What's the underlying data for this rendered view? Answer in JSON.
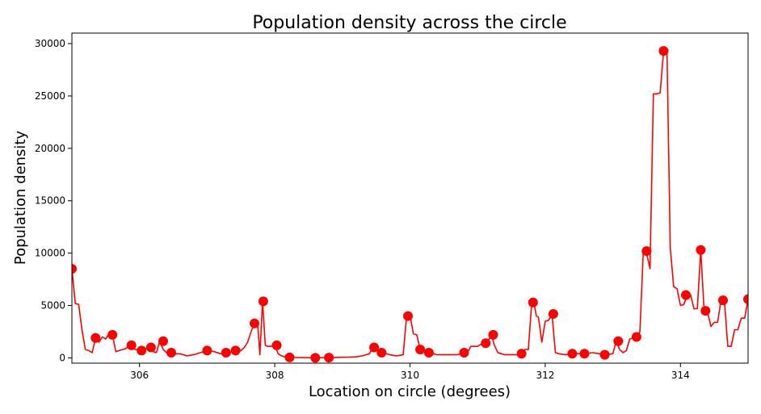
{
  "chart_data": {
    "type": "line",
    "title": "Population density across the circle",
    "xlabel": "Location on circle (degrees)",
    "ylabel": "Population density",
    "xlim": [
      305.0,
      315.0
    ],
    "ylim": [
      -500,
      31000
    ],
    "xticks": [
      306,
      308,
      310,
      312,
      314
    ],
    "yticks": [
      0,
      5000,
      10000,
      15000,
      20000,
      25000,
      30000
    ],
    "grid": false,
    "legend": false,
    "colors": {
      "line": "#ff0000",
      "marker": "#ff0000"
    },
    "series": [
      {
        "style": "line",
        "x": [
          305.0,
          305.05,
          305.1,
          305.15,
          305.2,
          305.25,
          305.3,
          305.35,
          305.4,
          305.45,
          305.5,
          305.55,
          305.6,
          305.65,
          305.7,
          305.75,
          305.8,
          305.85,
          305.9,
          305.95,
          306.0,
          306.05,
          306.1,
          306.15,
          306.2,
          306.25,
          306.3,
          306.35,
          306.4,
          306.45,
          306.5,
          306.6,
          306.7,
          306.8,
          306.9,
          307.0,
          307.1,
          307.2,
          307.3,
          307.4,
          307.5,
          307.55,
          307.6,
          307.65,
          307.7,
          307.75,
          307.78,
          307.82,
          307.86,
          307.9,
          307.95,
          308.0,
          308.05,
          308.1,
          308.15,
          308.2,
          308.3,
          308.4,
          308.5,
          308.6,
          308.7,
          308.8,
          308.9,
          309.0,
          309.1,
          309.2,
          309.3,
          309.4,
          309.45,
          309.5,
          309.55,
          309.6,
          309.7,
          309.8,
          309.9,
          309.95,
          310.0,
          310.05,
          310.1,
          310.15,
          310.2,
          310.25,
          310.3,
          310.4,
          310.5,
          310.6,
          310.7,
          310.8,
          310.85,
          310.9,
          311.0,
          311.05,
          311.1,
          311.15,
          311.2,
          311.25,
          311.3,
          311.35,
          311.4,
          311.5,
          311.6,
          311.65,
          311.7,
          311.75,
          311.8,
          311.83,
          311.87,
          311.9,
          311.95,
          312.0,
          312.05,
          312.1,
          312.15,
          312.2,
          312.3,
          312.4,
          312.5,
          312.6,
          312.7,
          312.8,
          312.9,
          313.0,
          313.05,
          313.1,
          313.15,
          313.2,
          313.25,
          313.3,
          313.35,
          313.4,
          313.45,
          313.5,
          313.55,
          313.6,
          313.65,
          313.7,
          313.75,
          313.8,
          313.85,
          313.9,
          313.95,
          314.0,
          314.05,
          314.1,
          314.15,
          314.2,
          314.25,
          314.3,
          314.35,
          314.4,
          314.45,
          314.5,
          314.55,
          314.6,
          314.65,
          314.7,
          314.75,
          314.8,
          314.85,
          314.9,
          314.95,
          315.0
        ],
        "y": [
          8500,
          5200,
          5100,
          2600,
          800,
          700,
          500,
          1900,
          1500,
          2000,
          1800,
          2300,
          2200,
          600,
          700,
          800,
          900,
          1200,
          900,
          800,
          700,
          800,
          900,
          1000,
          600,
          500,
          1600,
          800,
          500,
          500,
          400,
          400,
          200,
          300,
          500,
          700,
          600,
          400,
          500,
          600,
          700,
          1000,
          1500,
          2500,
          3300,
          3000,
          300,
          5400,
          1200,
          1100,
          1100,
          1200,
          400,
          200,
          100,
          50,
          40,
          30,
          20,
          10,
          20,
          30,
          50,
          60,
          80,
          100,
          200,
          400,
          1000,
          900,
          500,
          500,
          300,
          200,
          300,
          4000,
          4100,
          2300,
          2200,
          800,
          800,
          500,
          500,
          300,
          300,
          300,
          300,
          500,
          500,
          1100,
          1100,
          1300,
          1400,
          1500,
          2200,
          1200,
          500,
          400,
          300,
          300,
          300,
          400,
          800,
          800,
          5300,
          5300,
          4000,
          3900,
          1500,
          3500,
          3600,
          4200,
          500,
          400,
          300,
          400,
          400,
          400,
          500,
          400,
          300,
          400,
          1600,
          800,
          500,
          700,
          1800,
          1900,
          2000,
          2500,
          10200,
          10000,
          8500,
          25200,
          25200,
          25300,
          29300,
          29300,
          10500,
          6800,
          6600,
          5000,
          5100,
          6000,
          6000,
          4700,
          4700,
          10300,
          4500,
          4400,
          3000,
          3400,
          3400,
          5500,
          5500,
          1100,
          1100,
          2700,
          2700,
          3800,
          3800,
          5600
        ]
      },
      {
        "style": "markers",
        "x": [
          305.0,
          305.35,
          305.6,
          305.88,
          306.03,
          306.17,
          306.35,
          306.47,
          307.0,
          307.28,
          307.42,
          307.7,
          307.83,
          308.03,
          308.22,
          308.6,
          308.8,
          309.47,
          309.58,
          309.97,
          310.15,
          310.28,
          310.8,
          311.12,
          311.23,
          311.65,
          311.82,
          312.12,
          312.4,
          312.58,
          312.88,
          313.08,
          313.35,
          313.5,
          313.75,
          314.08,
          314.3,
          314.37,
          314.63,
          315.0
        ],
        "y": [
          8500,
          1900,
          2200,
          1200,
          700,
          1000,
          1600,
          500,
          700,
          500,
          700,
          3300,
          5400,
          1200,
          50,
          10,
          30,
          1000,
          500,
          4000,
          800,
          500,
          500,
          1400,
          2200,
          400,
          5300,
          4200,
          400,
          400,
          300,
          1600,
          2000,
          10200,
          29300,
          6000,
          10300,
          4500,
          5500,
          5600
        ]
      }
    ]
  }
}
